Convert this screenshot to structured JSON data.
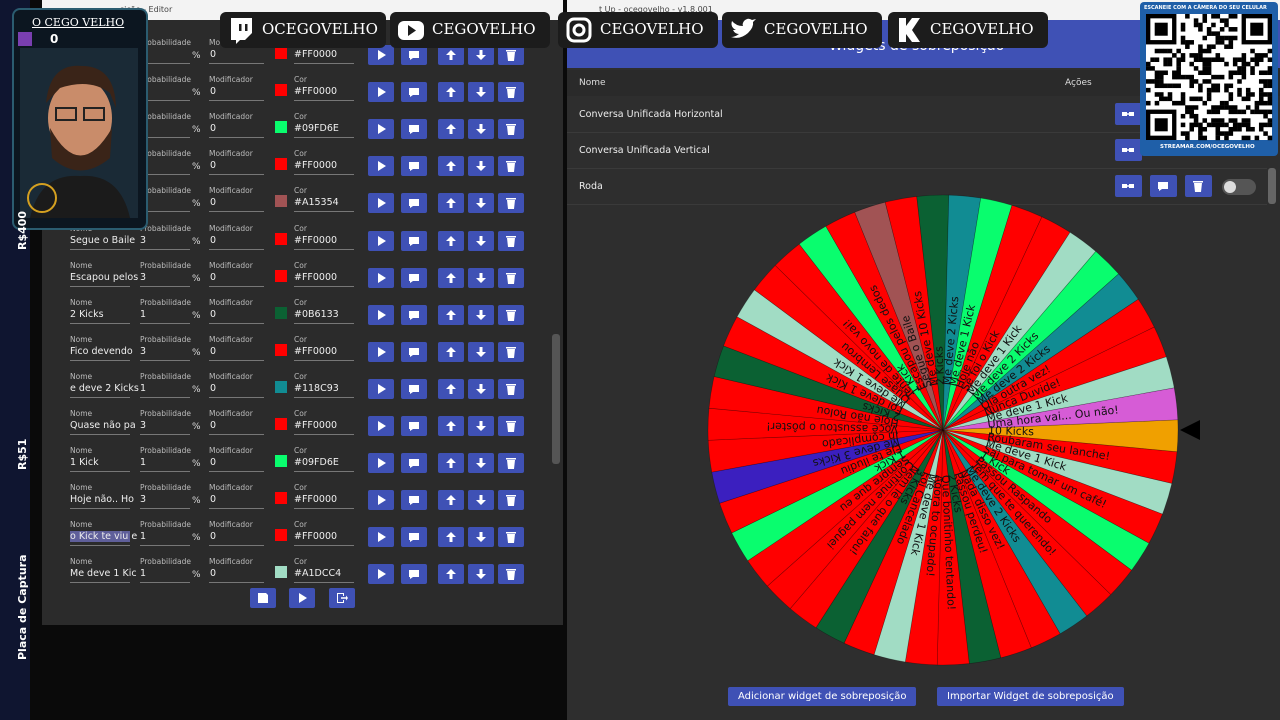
{
  "social": [
    "OCEGOVELHO",
    "CEGOVELHO",
    "CEGOVELHO",
    "CEGOVELHO",
    "CEGOVELHO"
  ],
  "avatar": {
    "name": "O CEGO VELHO",
    "count": "0"
  },
  "side": [
    "R$400",
    "R$51",
    "Placa de Captura"
  ],
  "editor": {
    "title": "sição - Editor",
    "labels": {
      "name": "Nome",
      "probability": "Probabilidade",
      "modifier": "Modificador",
      "color": "Cor",
      "percent": "%"
    },
    "rows": [
      {
        "modifier": 0,
        "color": "#FF0000"
      },
      {
        "modifier": 0,
        "color": "#FF0000"
      },
      {
        "modifier": 0,
        "color": "#09FD6E"
      },
      {
        "modifier": 0,
        "color": "#FF0000"
      },
      {
        "modifier": 0,
        "color": "#A15354"
      },
      {
        "name": "Segue o Baile",
        "probability": 3,
        "modifier": 0,
        "color": "#FF0000"
      },
      {
        "name": "Escapou pelos",
        "probability": 3,
        "modifier": 0,
        "color": "#FF0000"
      },
      {
        "name": "2 Kicks",
        "probability": 1,
        "modifier": 0,
        "color": "#0B6133"
      },
      {
        "name": "Fico devendo",
        "probability": 3,
        "modifier": 0,
        "color": "#FF0000"
      },
      {
        "name": "e deve 2 Kicks",
        "probability": 1,
        "modifier": 0,
        "color": "#118C93"
      },
      {
        "name": "Quase não pa",
        "probability": 3,
        "modifier": 0,
        "color": "#FF0000"
      },
      {
        "name": "1 Kick",
        "probability": 1,
        "modifier": 0,
        "color": "#09FD6E"
      },
      {
        "name": "Hoje não.. Ho",
        "probability": 3,
        "modifier": 0,
        "color": "#FF0000"
      },
      {
        "name": "o Kick te viu e",
        "probability": 1,
        "modifier": 0,
        "color": "#FF0000"
      },
      {
        "name": "Me deve 1 Kic",
        "probability": 1,
        "modifier": 0,
        "color": "#A1DCC4"
      }
    ]
  },
  "overlay_app": {
    "title": "t Up - ocegovelho - v1.8.001",
    "header": "Widgets de sobreposição",
    "columns": [
      "Nome",
      "Ações"
    ],
    "widgets": [
      "Conversa Unificada Horizontal",
      "Conversa Unificada Vertical",
      "Roda"
    ],
    "buttons": [
      "Adicionar widget de sobreposição",
      "Importar Widget de sobreposição"
    ]
  },
  "wheel": {
    "segments": [
      {
        "label": "10 Kicks",
        "color": "#F0A000"
      },
      {
        "label": "Roubaram seu lanche!",
        "color": "#FF0000"
      },
      {
        "label": "Me deve 1 Kick",
        "color": "#A1DCC4"
      },
      {
        "label": "Sai para tomar um café!",
        "color": "#FF0000"
      },
      {
        "label": "1 Kick",
        "color": "#09FD6E"
      },
      {
        "label": "Passou Raspando",
        "color": "#FF0000"
      },
      {
        "label": "Tem que te querendo!",
        "color": "#FF0000"
      },
      {
        "label": "Me deve 2 Kicks",
        "color": "#118C93"
      },
      {
        "label": "Nada disso vez!",
        "color": "#FF0000"
      },
      {
        "label": "Passou perdeu!",
        "color": "#FF0000"
      },
      {
        "label": "2 Kicks",
        "color": "#0B6133"
      },
      {
        "label": "Que bonitinho tentando!",
        "color": "#FF0000"
      },
      {
        "label": "Agora to ocupado!",
        "color": "#FF0000"
      },
      {
        "label": "Me deve 1 Kick",
        "color": "#A1DCC4"
      },
      {
        "label": "Foi Cancelado",
        "color": "#FF0000"
      },
      {
        "label": "3 Kicks",
        "color": "#0B6133"
      },
      {
        "label": "Nem lê o que falou!",
        "color": "#FF0000"
      },
      {
        "label": "Continue nem paguei",
        "color": "#FF0000"
      },
      {
        "label": "Sempre que eu",
        "color": "#FF0000"
      },
      {
        "label": "1 Kick",
        "color": "#09FD6E"
      },
      {
        "label": "Ele te iludiu",
        "color": "#FF0000"
      },
      {
        "label": "Me deve 3 Kicks",
        "color": "#3B1FBF"
      },
      {
        "label": "Ih complicado",
        "color": "#FF0000"
      },
      {
        "label": "Você assustou o pôster!",
        "color": "#FF0000"
      },
      {
        "label": "Hoje não Rolou",
        "color": "#FF0000"
      },
      {
        "label": "2 Kicks",
        "color": "#0B6133"
      },
      {
        "label": "Foi deve 1 Kick",
        "color": "#FF0000"
      },
      {
        "label": "Me deve 1 Kick",
        "color": "#A1DCC4"
      },
      {
        "label": "Quase Lembrou",
        "color": "#FF0000"
      },
      {
        "label": "Tente de novo vai!",
        "color": "#FF0000"
      },
      {
        "label": "1 Kick",
        "color": "#09FD6E"
      },
      {
        "label": "Escapou pelos dedos",
        "color": "#FF0000"
      },
      {
        "label": "Segue o Baile",
        "color": "#A15354"
      },
      {
        "label": "Me deve 10 Kicks",
        "color": "#FF0000"
      },
      {
        "label": "2 Kicks",
        "color": "#0B6133"
      },
      {
        "label": "Me deve 2 Kicks",
        "color": "#118C93"
      },
      {
        "label": "Me deve 1 Kick",
        "color": "#09FD6E"
      },
      {
        "label": "Hoje não",
        "color": "#FF0000"
      },
      {
        "label": "Se foi o Kick",
        "color": "#FF0000"
      },
      {
        "label": "Me deve 1 Kick",
        "color": "#A1DCC4"
      },
      {
        "label": "Me deve 2 Kicks",
        "color": "#09FD6E"
      },
      {
        "label": "Me deve 2 Kicks",
        "color": "#118C93"
      },
      {
        "label": "Olá outra vez!",
        "color": "#FF0000"
      },
      {
        "label": "Nunca Duvide!",
        "color": "#FF0000"
      },
      {
        "label": "Me deve 1 Kick",
        "color": "#A1DCC4"
      },
      {
        "label": "Uma hora vai... Ou não!",
        "color": "#D65CD6"
      }
    ]
  },
  "qr": {
    "top": "ESCANEIE COM A CÂMERA DO SEU CELULAR",
    "bottom": "STREAMAR.COM/OCEGOVELHO"
  }
}
